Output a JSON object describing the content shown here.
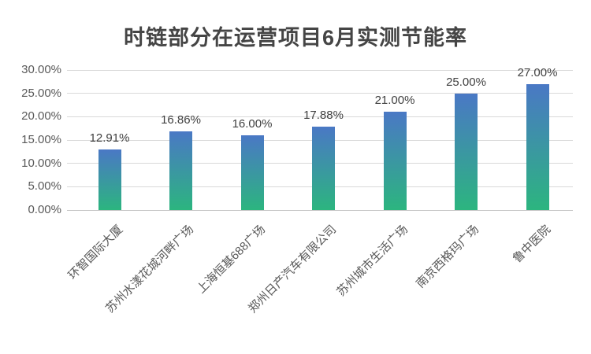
{
  "chart_data": {
    "type": "bar",
    "title": "时链部分在运营项目6月实测节能率",
    "categories": [
      "环智国际大厦",
      "苏州水漾花城河畔广场",
      "上海恒基688广场",
      "郑州日产汽车有限公司",
      "苏州城市生活广场",
      "南京西格玛广场",
      "鲁中医院"
    ],
    "values": [
      12.91,
      16.86,
      16.0,
      17.88,
      21.0,
      25.0,
      27.0
    ],
    "value_labels": [
      "12.91%",
      "16.86%",
      "16.00%",
      "17.88%",
      "21.00%",
      "25.00%",
      "27.00%"
    ],
    "xlabel": "",
    "ylabel": "",
    "ylim": [
      0,
      30
    ],
    "yticks": [
      {
        "value": 0,
        "label": "0.00%"
      },
      {
        "value": 5,
        "label": "5.00%"
      },
      {
        "value": 10,
        "label": "10.00%"
      },
      {
        "value": 15,
        "label": "15.00%"
      },
      {
        "value": 20,
        "label": "20.00%"
      },
      {
        "value": 25,
        "label": "25.00%"
      },
      {
        "value": 30,
        "label": "30.00%"
      }
    ],
    "grid": true,
    "legend_position": "none",
    "x_label_rotation_deg": 45,
    "colors": {
      "bar_gradient_top": "#4a78c5",
      "bar_gradient_bottom": "#2cb57f",
      "gridline": "#d9d9d9",
      "axis_line": "#c6c6c6",
      "title_text": "#454545",
      "tick_text": "#595959",
      "value_label_text": "#404040",
      "background": "#ffffff"
    }
  }
}
